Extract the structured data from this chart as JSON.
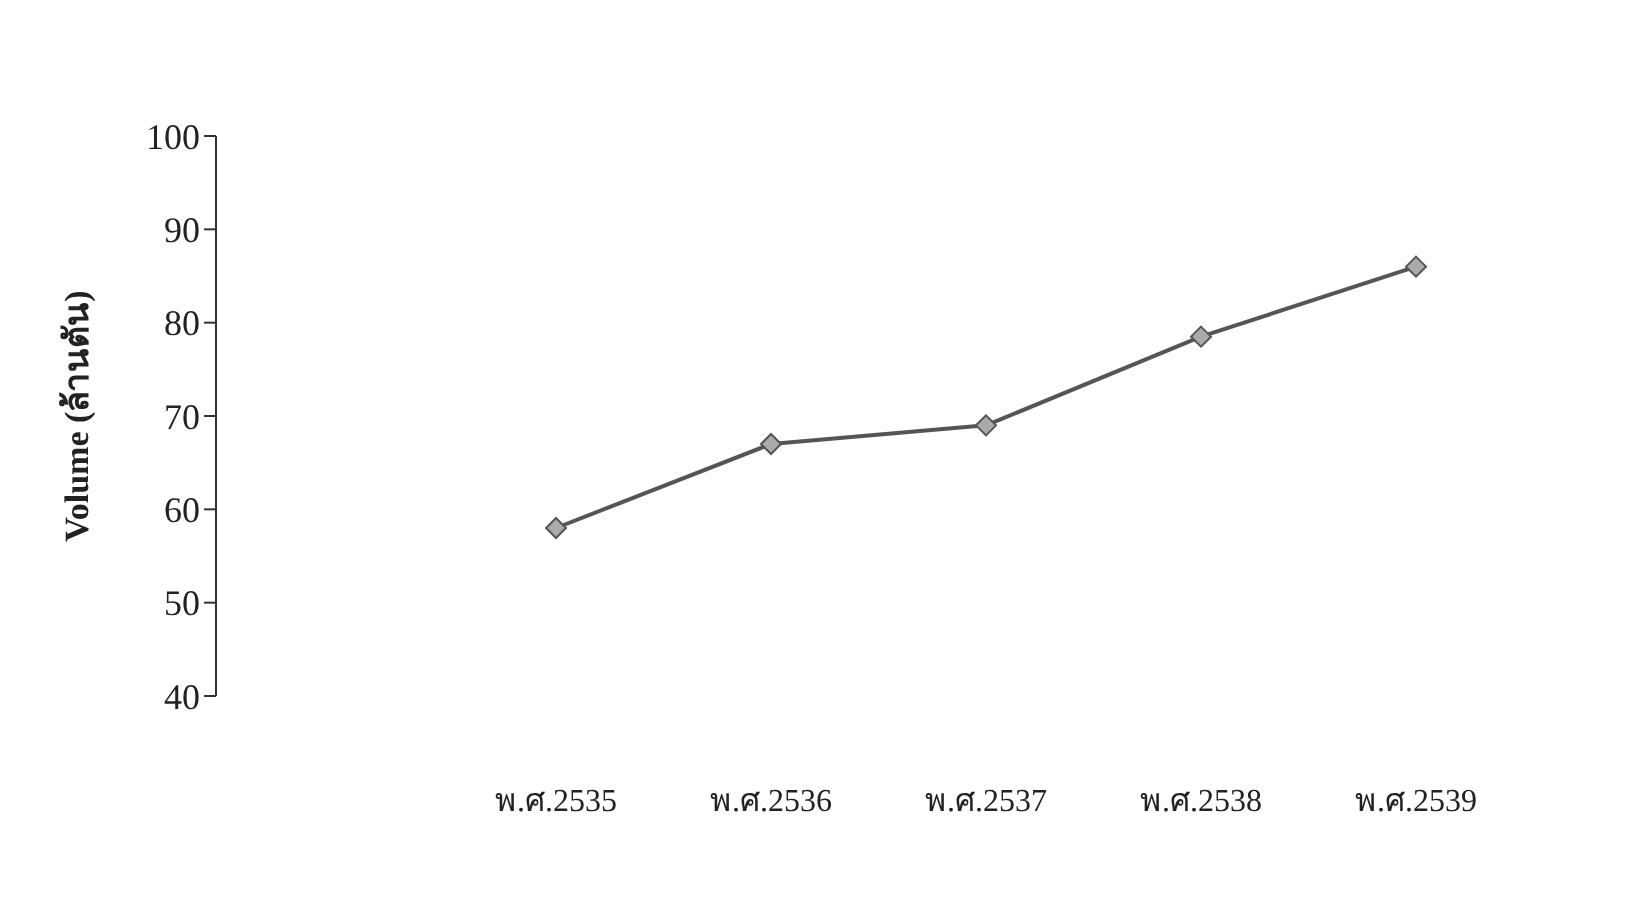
{
  "chart_data": {
    "type": "line",
    "ylabel": "Volume (ล้านตัน)",
    "categories": [
      "พ.ศ.2535",
      "พ.ศ.2536",
      "พ.ศ.2537",
      "พ.ศ.2538",
      "พ.ศ.2539"
    ],
    "series": [
      {
        "color": "#555555",
        "values": [
          58,
          67,
          69,
          78.5,
          86
        ]
      }
    ],
    "ylim": [
      40,
      100
    ],
    "yticks": [
      40,
      50,
      60,
      70,
      80,
      90,
      100
    ],
    "marker": "diamond",
    "line_style": "solid",
    "grid": false,
    "legend": false
  }
}
